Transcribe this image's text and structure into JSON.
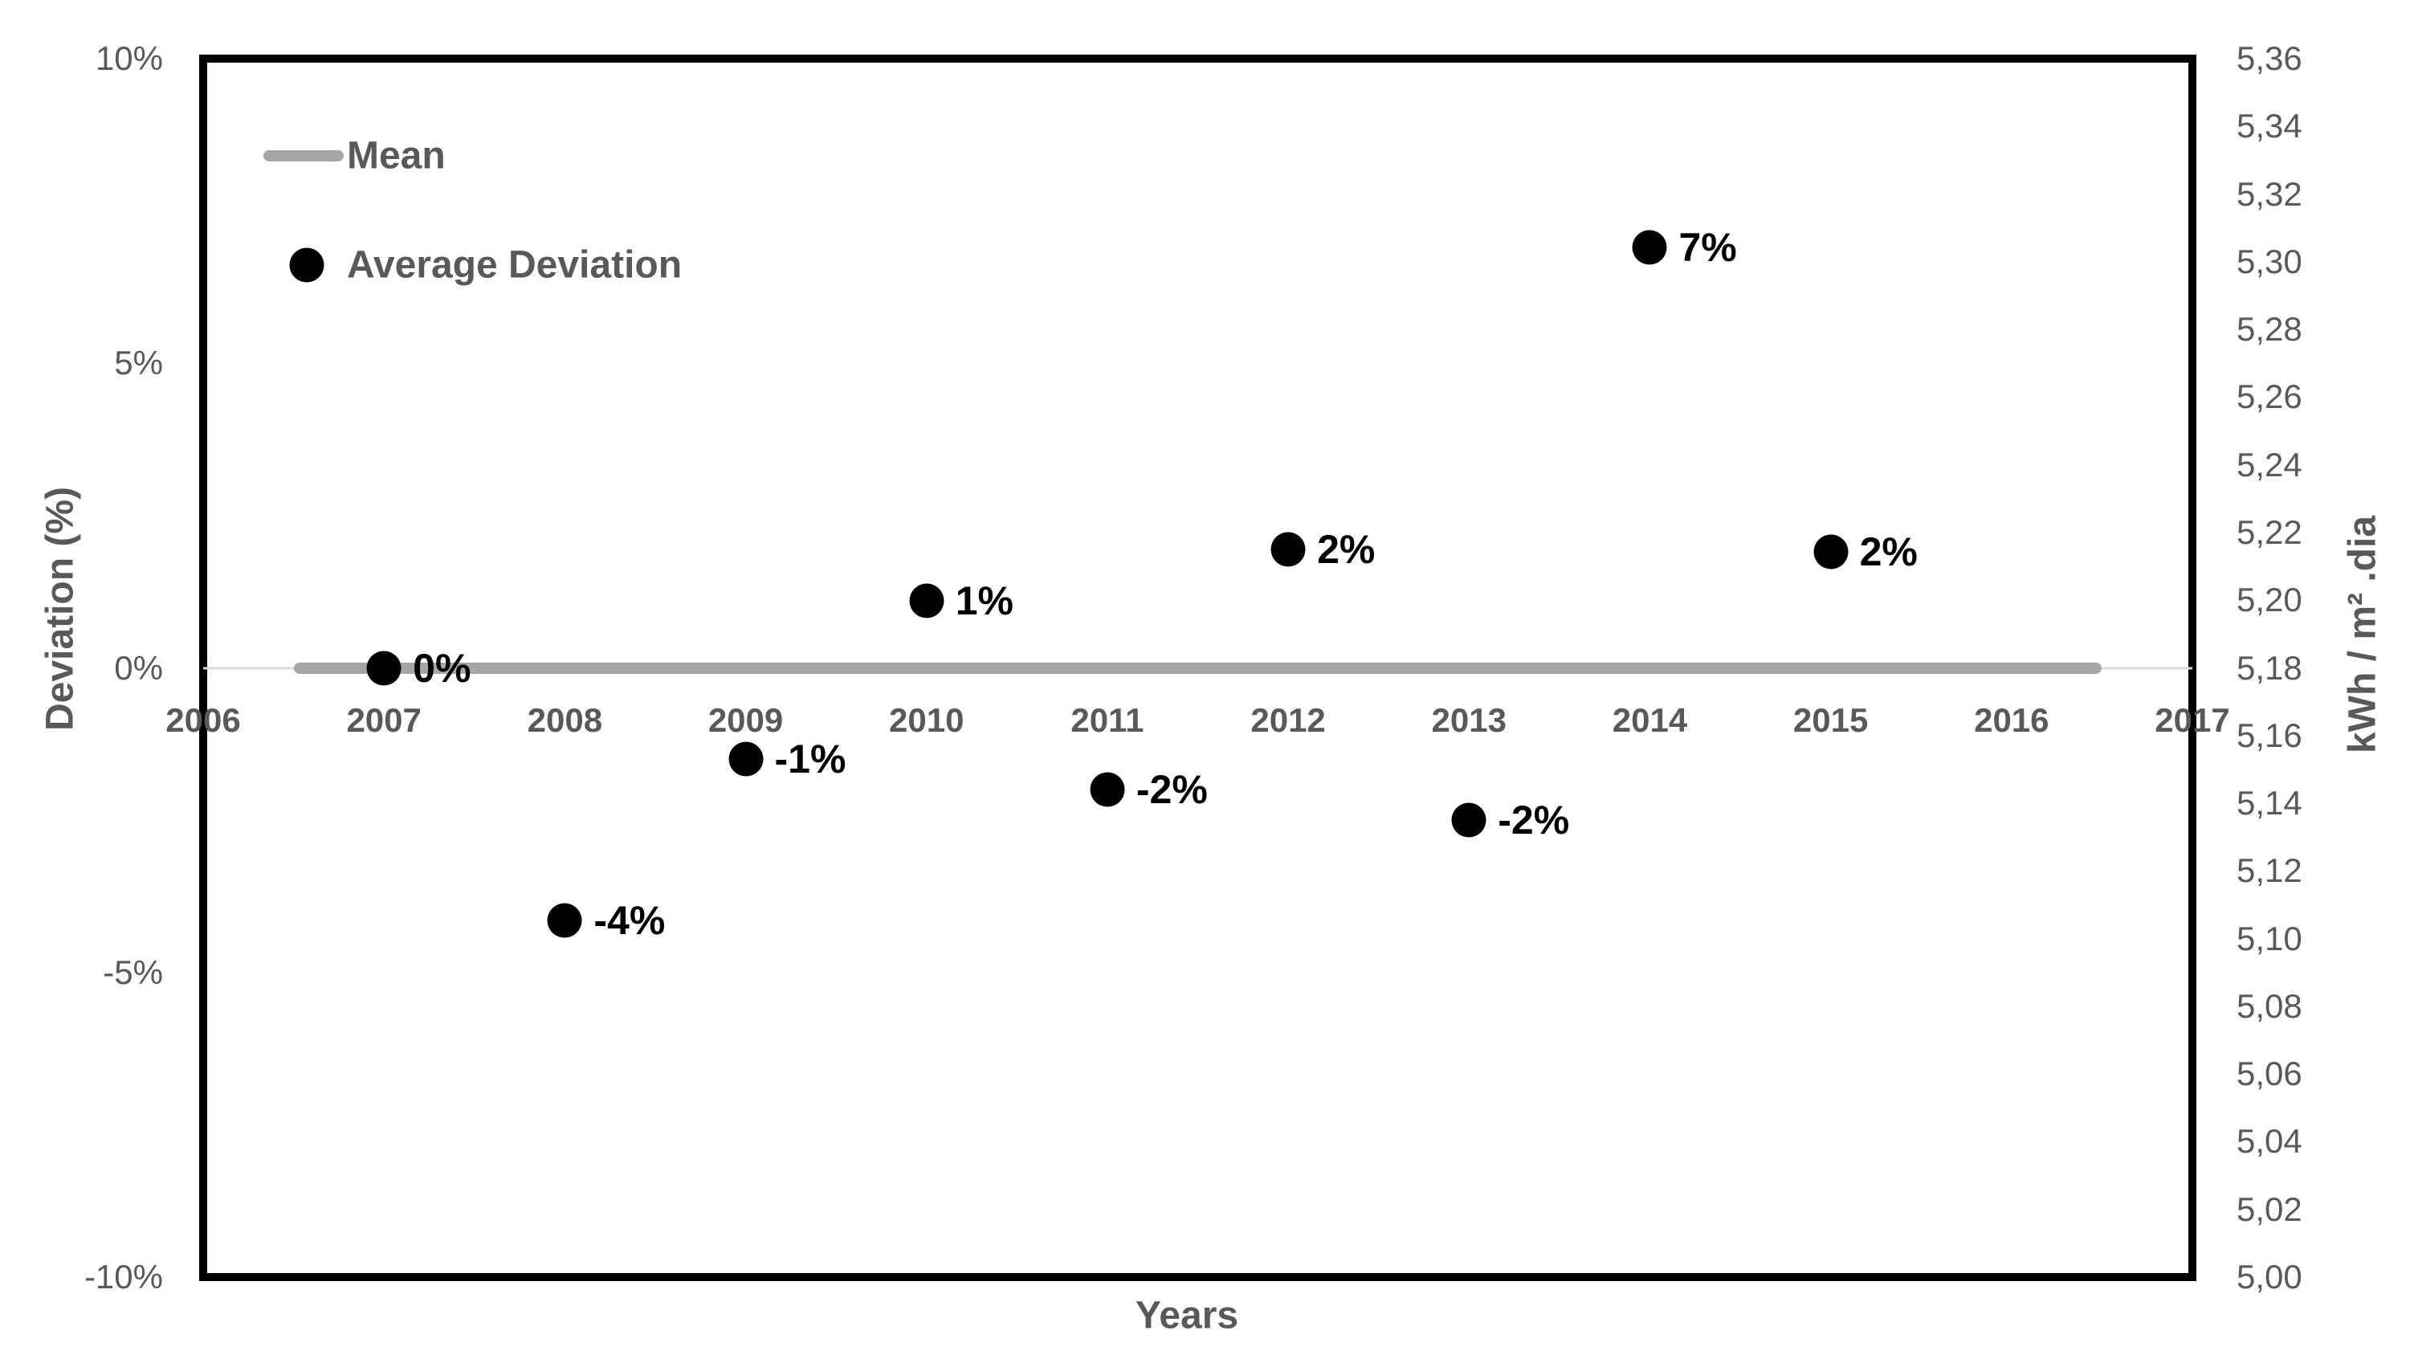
{
  "chart_data": {
    "type": "scatter",
    "title": "",
    "x": {
      "label": "Years",
      "range": [
        2006,
        2017
      ],
      "ticks": [
        {
          "v": 2006,
          "label": "2006"
        },
        {
          "v": 2007,
          "label": "2007"
        },
        {
          "v": 2008,
          "label": "2008"
        },
        {
          "v": 2009,
          "label": "2009"
        },
        {
          "v": 2010,
          "label": "2010"
        },
        {
          "v": 2011,
          "label": "2011"
        },
        {
          "v": 2012,
          "label": "2012"
        },
        {
          "v": 2013,
          "label": "2013"
        },
        {
          "v": 2014,
          "label": "2014"
        },
        {
          "v": 2015,
          "label": "2015"
        },
        {
          "v": 2016,
          "label": "2016"
        },
        {
          "v": 2017,
          "label": "2017"
        }
      ]
    },
    "y_left": {
      "label": "Deviation (%)",
      "range": [
        -10,
        10
      ],
      "ticks": [
        {
          "v": 10,
          "label": "10%"
        },
        {
          "v": 5,
          "label": "5%"
        },
        {
          "v": 0,
          "label": "0%"
        },
        {
          "v": -5,
          "label": "-5%"
        },
        {
          "v": -10,
          "label": "-10%"
        }
      ]
    },
    "y_right": {
      "label": "kWh / m² .dia",
      "range": [
        5.0,
        5.36
      ],
      "ticks": [
        {
          "v": 5.36,
          "label": "5,36"
        },
        {
          "v": 5.34,
          "label": "5,34"
        },
        {
          "v": 5.32,
          "label": "5,32"
        },
        {
          "v": 5.3,
          "label": "5,30"
        },
        {
          "v": 5.28,
          "label": "5,28"
        },
        {
          "v": 5.26,
          "label": "5,26"
        },
        {
          "v": 5.24,
          "label": "5,24"
        },
        {
          "v": 5.22,
          "label": "5,22"
        },
        {
          "v": 5.2,
          "label": "5,20"
        },
        {
          "v": 5.18,
          "label": "5,18"
        },
        {
          "v": 5.16,
          "label": "5,16"
        },
        {
          "v": 5.14,
          "label": "5,14"
        },
        {
          "v": 5.12,
          "label": "5,12"
        },
        {
          "v": 5.1,
          "label": "5,10"
        },
        {
          "v": 5.08,
          "label": "5,08"
        },
        {
          "v": 5.06,
          "label": "5,06"
        },
        {
          "v": 5.04,
          "label": "5,04"
        },
        {
          "v": 5.02,
          "label": "5,02"
        },
        {
          "v": 5.0,
          "label": "5,00"
        }
      ]
    },
    "legend": [
      {
        "name": "Mean",
        "marker": "line",
        "color": "#a6a6a6"
      },
      {
        "name": "Average Deviation",
        "marker": "dot",
        "color": "#000000"
      }
    ],
    "mean_line": {
      "y_pct": 0,
      "x_start": 2006.5,
      "x_end": 2016.5,
      "color": "#a6a6a6"
    },
    "series": [
      {
        "name": "Average Deviation",
        "marker_color": "#000000",
        "points": [
          {
            "year": 2007,
            "pct": 0.0,
            "label": "0%"
          },
          {
            "year": 2008,
            "pct": -4.15,
            "label": "-4%"
          },
          {
            "year": 2009,
            "pct": -1.5,
            "label": "-1%"
          },
          {
            "year": 2010,
            "pct": 1.1,
            "label": "1%"
          },
          {
            "year": 2011,
            "pct": -2.0,
            "label": "-2%"
          },
          {
            "year": 2012,
            "pct": 1.95,
            "label": "2%"
          },
          {
            "year": 2013,
            "pct": -2.5,
            "label": "-2%"
          },
          {
            "year": 2014,
            "pct": 6.9,
            "label": "7%"
          },
          {
            "year": 2015,
            "pct": 1.9,
            "label": "2%"
          }
        ]
      }
    ],
    "grid": {
      "zero_line": true,
      "zero_line_color": "#d9d9d9"
    },
    "plot_border_color": "#000000"
  },
  "colors": {
    "tick_text": "#595959",
    "title_text": "#595959",
    "data_label": "#000000",
    "mean_line": "#a6a6a6",
    "zero_gridline": "#d9d9d9",
    "background": "#ffffff"
  }
}
